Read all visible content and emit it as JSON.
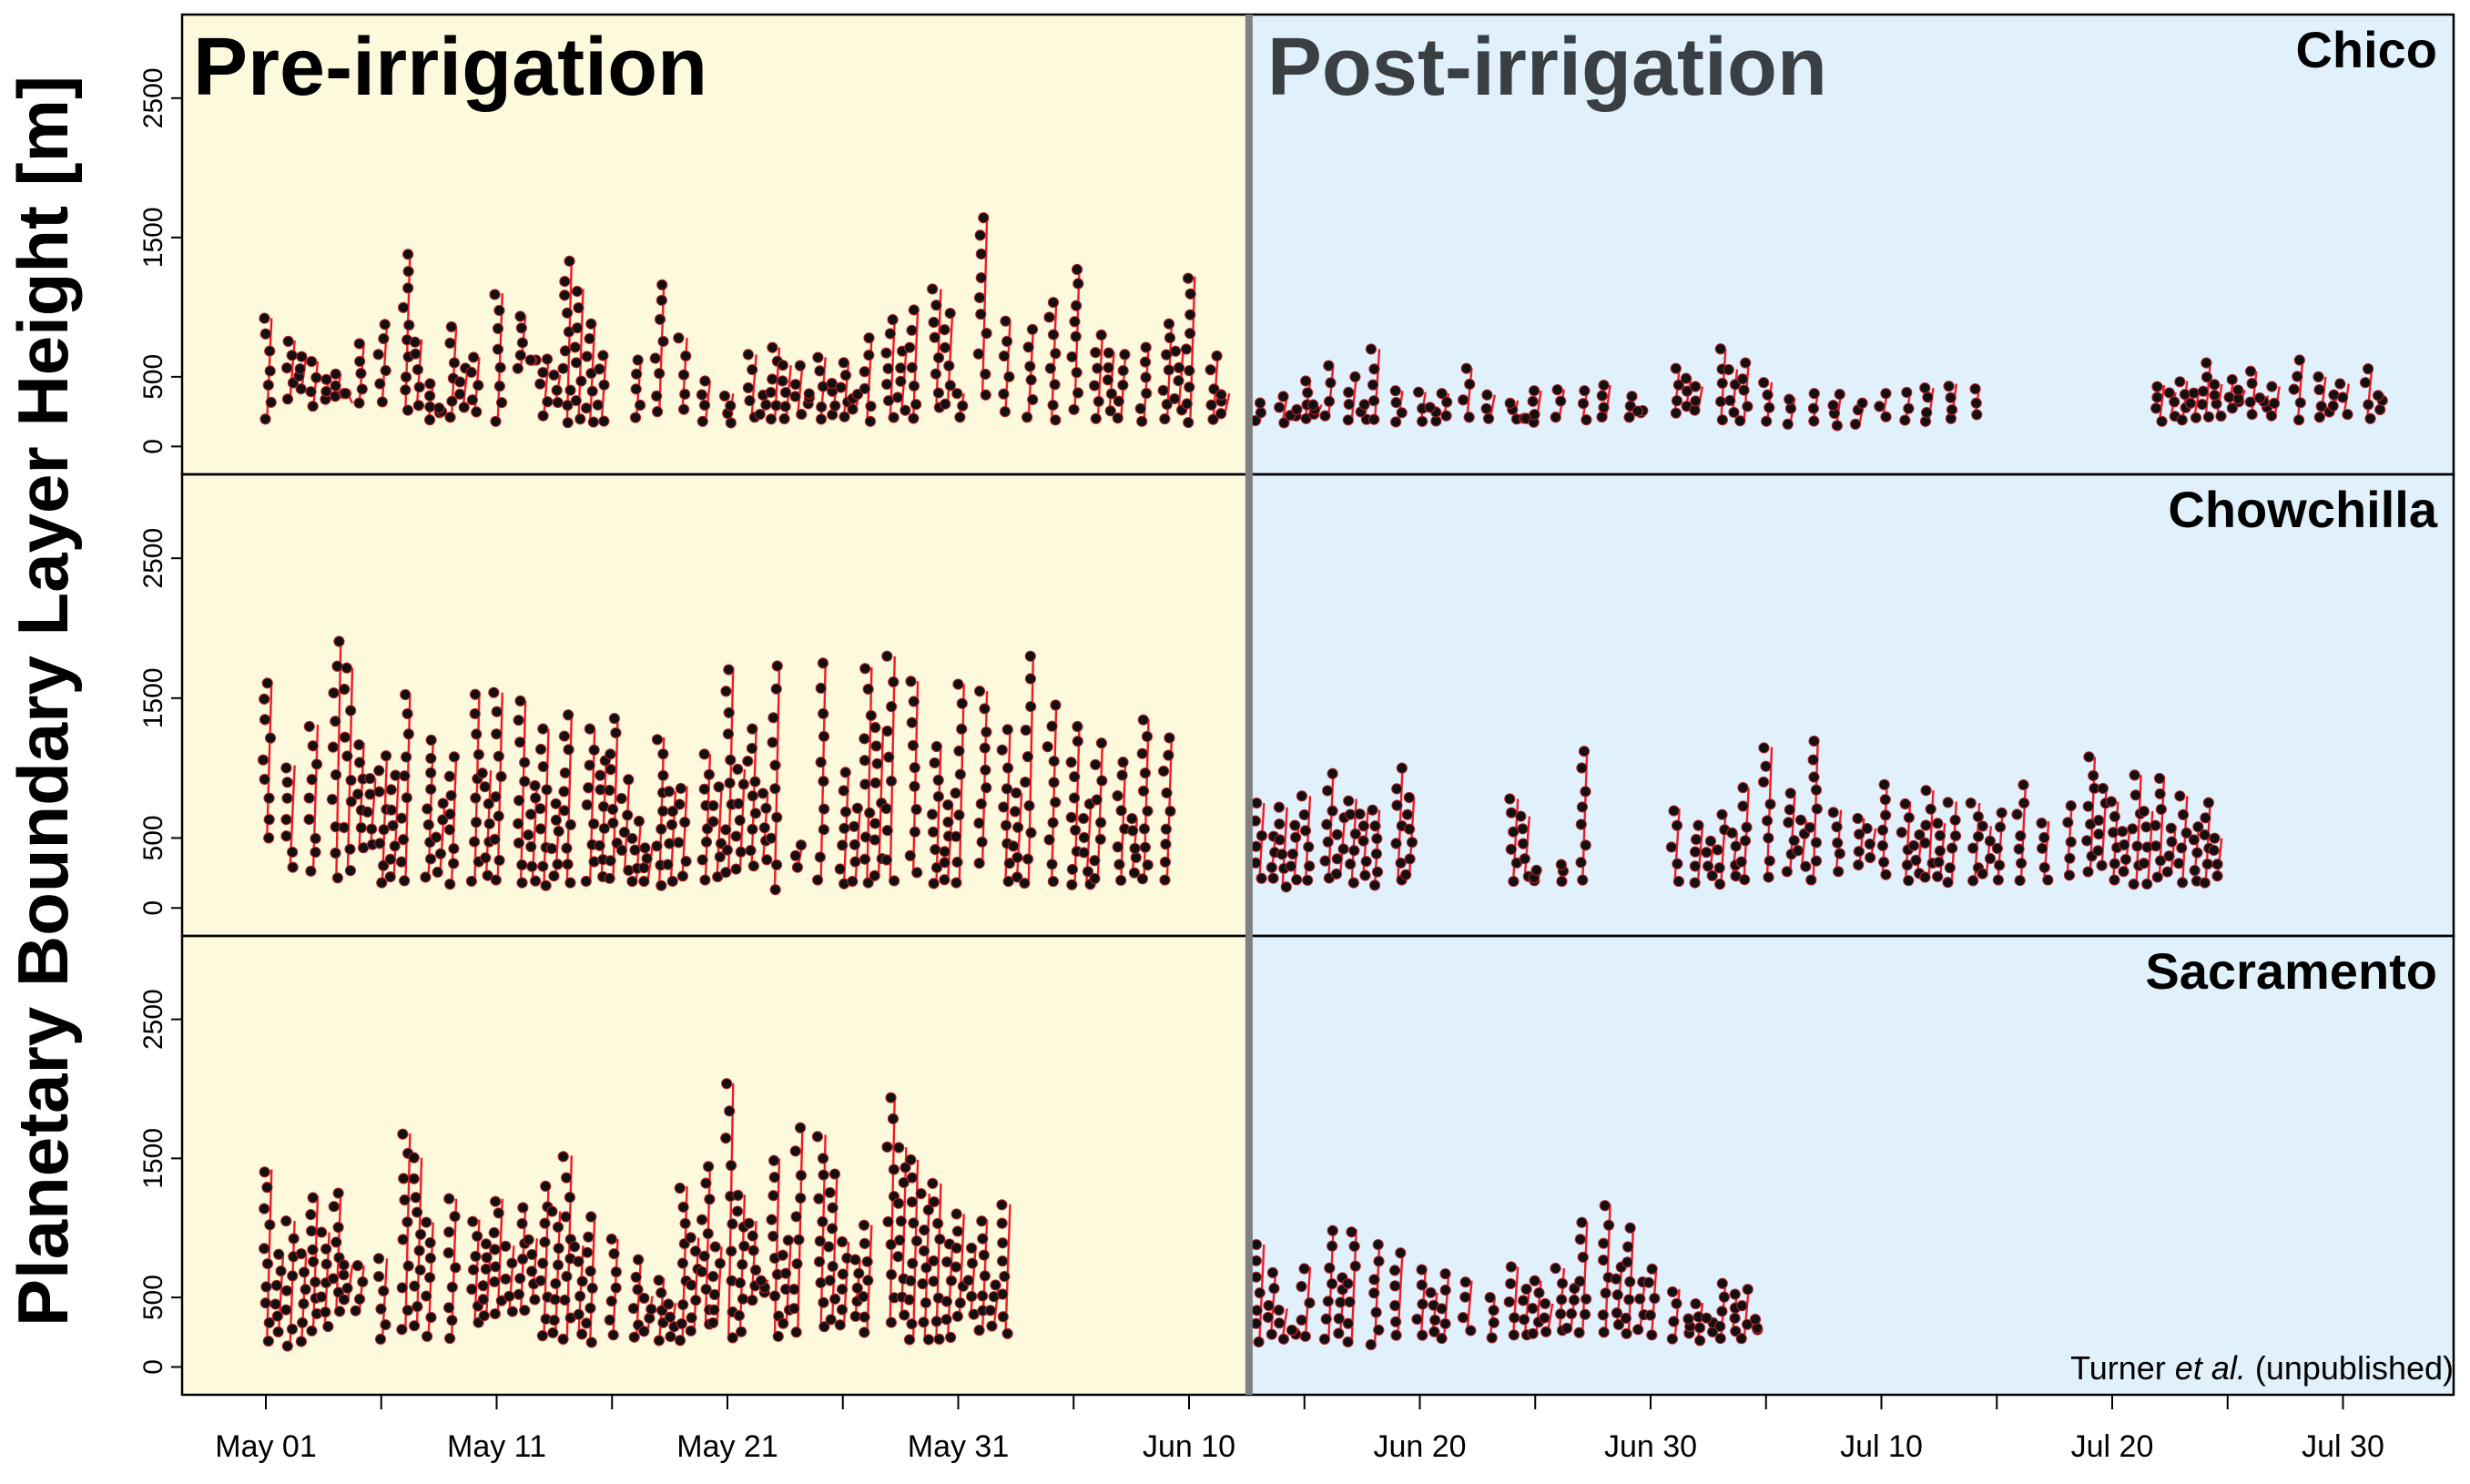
{
  "figure": {
    "ylabel": "Planetary Boundary Layer  Height [m]",
    "credit": {
      "prefix": "Turner ",
      "italic": "et al.",
      "suffix": " (unpublished)"
    },
    "periods": [
      {
        "label": "Pre-irrigation",
        "color": "#fdf9dd",
        "text_color": "#000000"
      },
      {
        "label": "Post-irrigation",
        "color": "#e0f1fc",
        "text_color": "#3a3f44"
      }
    ],
    "divider_color": "#808080",
    "point_color": "#111111",
    "segment_color": "#ee1b24"
  },
  "chart_data": [
    {
      "type": "scatter",
      "title": "Chico",
      "xlabel": "",
      "ylabel": "Planetary Boundary Layer  Height [m]",
      "ylim": [
        -200,
        3100
      ],
      "y_ticks": [
        0,
        500,
        1500,
        2500
      ],
      "x_range_days": [
        -3,
        95
      ],
      "irrigation_start": "Jun 13",
      "x_ticks": [
        "May 01",
        "May 11",
        "May 21",
        "May 31",
        "Jun 10",
        "Jun 20",
        "Jun 30",
        "Jul 10",
        "Jul 20",
        "Jul 30"
      ],
      "pre_ranges": [
        [
          190,
          920
        ],
        [
          340,
          760
        ],
        [
          270,
          610
        ],
        [
          360,
          520
        ],
        [
          300,
          740
        ],
        [
          320,
          880
        ],
        [
          260,
          1390
        ],
        [
          190,
          450
        ],
        [
          210,
          860
        ],
        [
          240,
          640
        ],
        [
          180,
          1100
        ],
        [
          560,
          940
        ],
        [
          220,
          640
        ],
        [
          160,
          1330
        ],
        [
          170,
          880
        ],
        [
          190,
          620
        ],
        [
          250,
          1160
        ],
        [
          260,
          780
        ],
        [
          180,
          470
        ],
        [
          150,
          380
        ],
        [
          210,
          660
        ],
        [
          180,
          710
        ],
        [
          230,
          580
        ],
        [
          190,
          640
        ],
        [
          200,
          610
        ],
        [
          180,
          780
        ],
        [
          200,
          910
        ],
        [
          190,
          980
        ],
        [
          280,
          1130
        ],
        [
          210,
          380
        ],
        [
          370,
          1650
        ],
        [
          250,
          900
        ],
        [
          210,
          840
        ],
        [
          190,
          1040
        ],
        [
          260,
          1280
        ],
        [
          200,
          800
        ],
        [
          190,
          660
        ],
        [
          180,
          720
        ],
        [
          180,
          880
        ],
        [
          160,
          1220
        ],
        [
          190,
          650
        ],
        [
          250,
          1170
        ],
        [
          200,
          710
        ],
        [
          200,
          620
        ],
        [
          170,
          650
        ],
        [
          190,
          520
        ],
        [
          180,
          810
        ],
        [
          170,
          1300
        ],
        [
          200,
          960
        ],
        [
          180,
          640
        ]
      ],
      "post_ranges": [
        [
          170,
          330
        ],
        [
          170,
          360
        ],
        [
          200,
          470
        ],
        [
          220,
          580
        ],
        [
          190,
          500
        ],
        [
          180,
          700
        ],
        [
          160,
          400
        ],
        [
          180,
          390
        ],
        [
          220,
          380
        ],
        [
          210,
          560
        ],
        [
          200,
          370
        ],
        [
          190,
          330
        ],
        [
          170,
          400
        ],
        [
          210,
          410
        ],
        [
          180,
          400
        ],
        [
          200,
          440
        ],
        [
          210,
          360
        ],
        [
          240,
          560
        ],
        [
          260,
          430
        ],
        [
          190,
          700
        ],
        [
          180,
          600
        ],
        [
          180,
          460
        ],
        [
          160,
          350
        ],
        [
          180,
          380
        ],
        [
          150,
          380
        ],
        [
          160,
          330
        ],
        [
          200,
          380
        ],
        [
          180,
          390
        ],
        [
          180,
          420
        ],
        [
          200,
          450
        ],
        [
          210,
          430
        ],
        [
          180,
          440
        ],
        [
          180,
          470
        ],
        [
          200,
          600
        ],
        [
          260,
          480
        ],
        [
          230,
          540
        ],
        [
          220,
          430
        ],
        [
          190,
          620
        ],
        [
          210,
          500
        ],
        [
          230,
          450
        ],
        [
          200,
          560
        ]
      ],
      "pre_gap_days": [
        15
      ],
      "post_gap_days": [
        17,
        32,
        33,
        34,
        35,
        36,
        37,
        38
      ]
    },
    {
      "type": "scatter",
      "title": "Chowchilla",
      "xlabel": "",
      "ylabel": "Planetary Boundary Layer  Height [m]",
      "ylim": [
        -200,
        3100
      ],
      "y_ticks": [
        0,
        500,
        1500,
        2500
      ],
      "x_range_days": [
        -3,
        95
      ],
      "irrigation_start": "Jun 13",
      "x_ticks": [
        "May 01",
        "May 11",
        "May 21",
        "May 31",
        "Jun 10",
        "Jun 20",
        "Jun 30",
        "Jul 10",
        "Jul 20",
        "Jul 30"
      ],
      "pre_ranges": [
        [
          500,
          1620
        ],
        [
          280,
          1020
        ],
        [
          250,
          1310
        ],
        [
          200,
          1920
        ],
        [
          430,
          1180
        ],
        [
          180,
          1100
        ],
        [
          180,
          1530
        ],
        [
          220,
          1200
        ],
        [
          170,
          1080
        ],
        [
          180,
          1530
        ],
        [
          200,
          1540
        ],
        [
          180,
          1480
        ],
        [
          160,
          1280
        ],
        [
          180,
          1380
        ],
        [
          180,
          1280
        ],
        [
          200,
          1370
        ],
        [
          190,
          620
        ],
        [
          160,
          1220
        ],
        [
          210,
          870
        ],
        [
          200,
          1100
        ],
        [
          250,
          1720
        ],
        [
          300,
          1280
        ],
        [
          130,
          1730
        ],
        [
          290,
          450
        ],
        [
          200,
          1750
        ],
        [
          160,
          980
        ],
        [
          180,
          1720
        ],
        [
          180,
          1800
        ],
        [
          240,
          1620
        ],
        [
          160,
          1170
        ],
        [
          180,
          1600
        ],
        [
          320,
          1550
        ],
        [
          180,
          1280
        ],
        [
          170,
          1800
        ],
        [
          190,
          1450
        ],
        [
          160,
          1300
        ],
        [
          210,
          1180
        ],
        [
          180,
          1060
        ],
        [
          190,
          1350
        ],
        [
          200,
          1220
        ]
      ],
      "post_ranges": [
        [
          200,
          750
        ],
        [
          150,
          720
        ],
        [
          180,
          800
        ],
        [
          210,
          960
        ],
        [
          180,
          780
        ],
        [
          160,
          700
        ],
        [
          200,
          1000
        ],
        [
          190,
          780
        ],
        [
          180,
          270
        ],
        [
          190,
          310
        ],
        [
          180,
          1120
        ],
        [
          190,
          710
        ],
        [
          180,
          590
        ],
        [
          170,
          680
        ],
        [
          200,
          860
        ],
        [
          220,
          1150
        ],
        [
          260,
          820
        ],
        [
          200,
          1200
        ],
        [
          260,
          700
        ],
        [
          300,
          640
        ],
        [
          220,
          900
        ],
        [
          190,
          760
        ],
        [
          200,
          840
        ],
        [
          180,
          760
        ],
        [
          190,
          750
        ],
        [
          200,
          680
        ],
        [
          190,
          880
        ],
        [
          200,
          620
        ],
        [
          220,
          740
        ],
        [
          240,
          1080
        ],
        [
          200,
          760
        ],
        [
          170,
          950
        ],
        [
          220,
          940
        ],
        [
          180,
          800
        ],
        [
          180,
          760
        ]
      ],
      "pre_gap_days": [],
      "post_gap_days": [
        7,
        8,
        9,
        10,
        15,
        16,
        17
      ]
    },
    {
      "type": "scatter",
      "title": "Sacramento",
      "xlabel": "",
      "ylabel": "Planetary Boundary Layer  Height [m]",
      "ylim": [
        -200,
        3100
      ],
      "y_ticks": [
        0,
        500,
        1500,
        2500
      ],
      "x_range_days": [
        -3,
        95
      ],
      "irrigation_start": "Jun 13",
      "x_ticks": [
        "May 01",
        "May 11",
        "May 21",
        "May 31",
        "Jun 10",
        "Jun 20",
        "Jun 30",
        "Jul 10",
        "Jul 20",
        "Jul 30"
      ],
      "pre_ranges": [
        [
          180,
          1420
        ],
        [
          150,
          1050
        ],
        [
          250,
          1230
        ],
        [
          400,
          1260
        ],
        [
          390,
          730
        ],
        [
          200,
          780
        ],
        [
          270,
          1680
        ],
        [
          220,
          1040
        ],
        [
          190,
          1210
        ],
        [
          320,
          1060
        ],
        [
          370,
          1210
        ],
        [
          400,
          1150
        ],
        [
          220,
          1300
        ],
        [
          200,
          1520
        ],
        [
          170,
          1080
        ],
        [
          230,
          920
        ],
        [
          200,
          780
        ],
        [
          190,
          640
        ],
        [
          180,
          1300
        ],
        [
          300,
          1450
        ],
        [
          210,
          2040
        ],
        [
          480,
          1050
        ],
        [
          220,
          1500
        ],
        [
          250,
          1720
        ],
        [
          290,
          1670
        ],
        [
          300,
          900
        ],
        [
          240,
          1020
        ],
        [
          320,
          1950
        ],
        [
          180,
          1490
        ],
        [
          200,
          1320
        ],
        [
          350,
          1100
        ],
        [
          260,
          1060
        ],
        [
          240,
          1170
        ]
      ],
      "post_ranges": [
        [
          180,
          880
        ],
        [
          200,
          420
        ],
        [
          220,
          720
        ],
        [
          200,
          980
        ],
        [
          180,
          990
        ],
        [
          160,
          880
        ],
        [
          220,
          820
        ],
        [
          210,
          700
        ],
        [
          200,
          670
        ],
        [
          250,
          620
        ],
        [
          210,
          500
        ],
        [
          230,
          720
        ],
        [
          240,
          620
        ],
        [
          250,
          710
        ],
        [
          230,
          1040
        ],
        [
          250,
          1170
        ],
        [
          240,
          1000
        ],
        [
          230,
          720
        ],
        [
          200,
          560
        ],
        [
          190,
          460
        ],
        [
          200,
          620
        ],
        [
          200,
          560
        ]
      ],
      "pre_gap_days": [],
      "post_gap_days": [
        22,
        23,
        24,
        25,
        26,
        27,
        28,
        29,
        30,
        31,
        32,
        33,
        34,
        35,
        36,
        37,
        38,
        39,
        40,
        41,
        42,
        43,
        44,
        45,
        46,
        47,
        48,
        49
      ]
    }
  ]
}
